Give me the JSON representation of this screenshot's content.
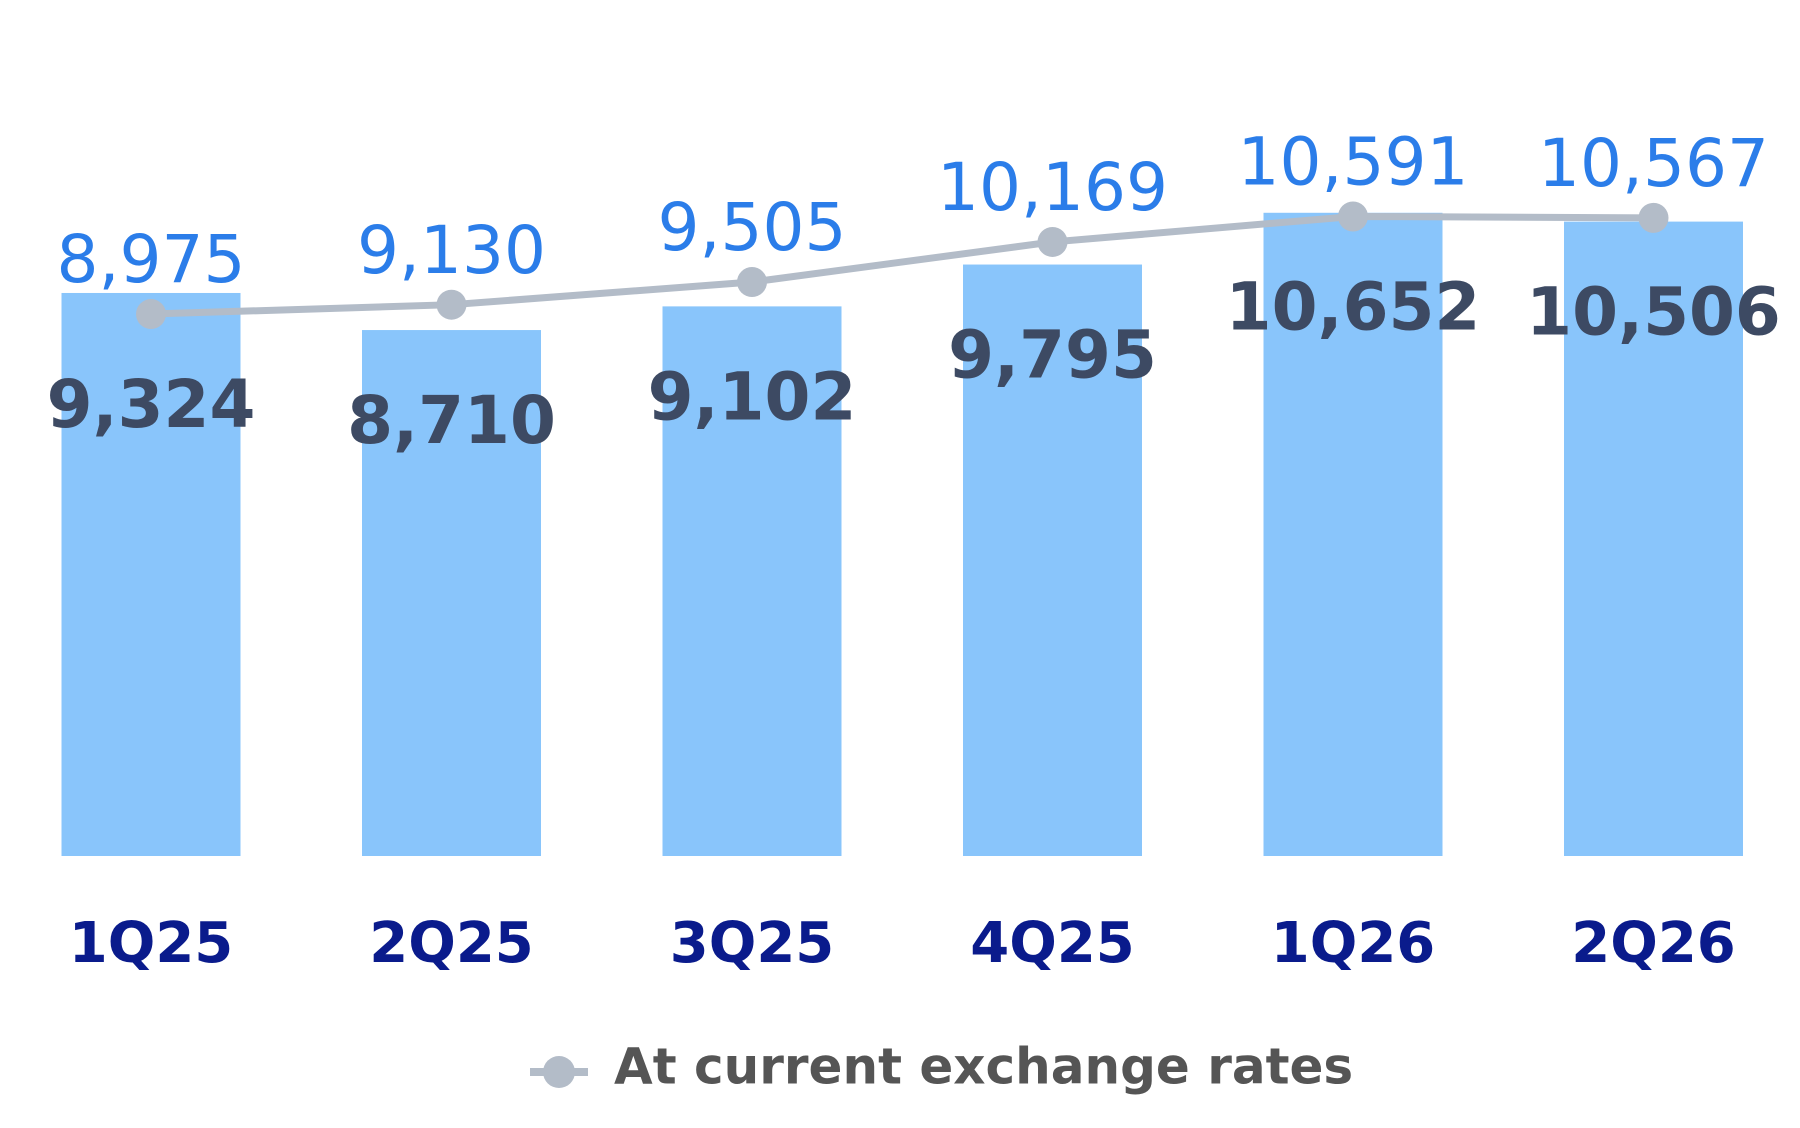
{
  "chart_data": {
    "type": "bar",
    "categories": [
      "1Q25",
      "2Q25",
      "3Q25",
      "4Q25",
      "1Q26",
      "2Q26"
    ],
    "series": [
      {
        "type": "bar",
        "color": "#89c5fb",
        "label_color": "#3d4a63",
        "values": [
          9324,
          8710,
          9102,
          9795,
          10652,
          10506
        ],
        "value_labels": [
          "9,324",
          "8,710",
          "9,102",
          "9,795",
          "10,652",
          "10,506"
        ]
      },
      {
        "name": "At current exchange rates",
        "type": "line",
        "color": "#b3bcc8",
        "label_color": "#2b7de9",
        "values": [
          8975,
          9130,
          9505,
          10169,
          10591,
          10567
        ],
        "value_labels": [
          "8,975",
          "9,130",
          "9,505",
          "10,169",
          "10,591",
          "10,567"
        ]
      }
    ],
    "ylim": [
      0,
      13000
    ],
    "legend": "bottom"
  }
}
